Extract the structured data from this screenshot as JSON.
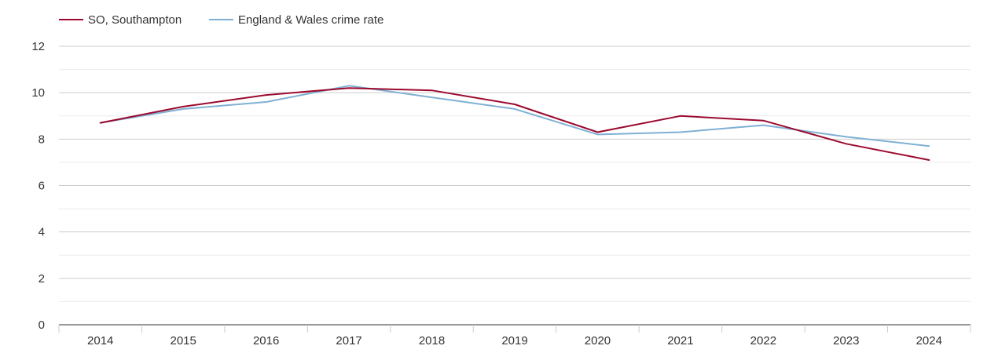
{
  "chart_data": {
    "type": "line",
    "title": "",
    "xlabel": "",
    "ylabel": "",
    "categories": [
      "2014",
      "2015",
      "2016",
      "2017",
      "2018",
      "2019",
      "2020",
      "2021",
      "2022",
      "2023",
      "2024"
    ],
    "ylim": [
      0,
      12
    ],
    "yticks": [
      "0",
      "2",
      "4",
      "6",
      "8",
      "10",
      "12"
    ],
    "grid": true,
    "legend_position": "top-left",
    "series": [
      {
        "name": "SO, Southampton",
        "color": "#9b0a2e",
        "values": [
          8.7,
          9.4,
          9.9,
          10.2,
          10.1,
          9.5,
          8.3,
          9.0,
          8.8,
          7.8,
          7.1
        ]
      },
      {
        "name": "England & Wales crime rate",
        "color": "#7fb0d4",
        "values": [
          8.7,
          9.3,
          9.6,
          10.3,
          9.8,
          9.3,
          8.2,
          8.3,
          8.6,
          8.1,
          7.7
        ]
      }
    ]
  }
}
